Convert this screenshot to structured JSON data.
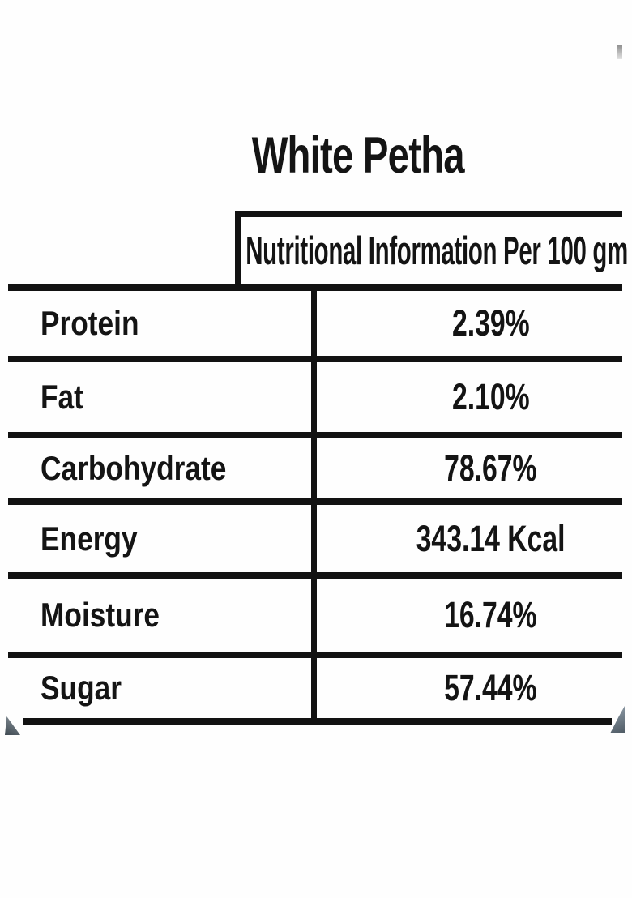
{
  "page": {
    "title": "White Petha"
  },
  "table": {
    "header": "Nutritional Information Per 100 gm",
    "rows": [
      {
        "label": "Protein",
        "value": "2.39%"
      },
      {
        "label": "Fat",
        "value": "2.10%"
      },
      {
        "label": "Carbohydrate",
        "value": "78.67%"
      },
      {
        "label": "Energy",
        "value": "343.14 Kcal"
      },
      {
        "label": "Moisture",
        "value": "16.74%"
      },
      {
        "label": "Sugar",
        "value": "57.44%"
      }
    ]
  },
  "colors": {
    "ink": "#121212",
    "background": "#ffffff",
    "page_curl": "#4e5a64"
  }
}
